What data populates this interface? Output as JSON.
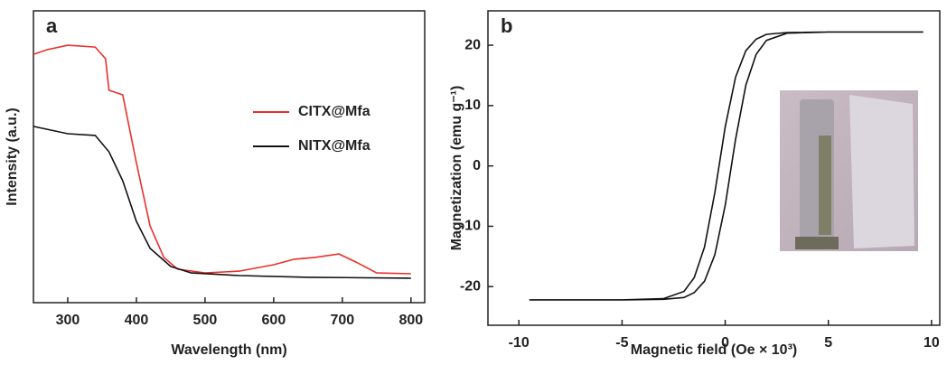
{
  "chart_data": [
    {
      "type": "line",
      "panel_label": "a",
      "x_label": "Wavelength (nm)",
      "y_label": "Intensity (a.u.)",
      "xlim": [
        250,
        820
      ],
      "xticks": [
        300,
        400,
        500,
        600,
        700,
        800
      ],
      "ylim": [
        0,
        100
      ],
      "series": [
        {
          "name": "CITX@Mfa",
          "color": "#e8302a",
          "x": [
            250,
            270,
            300,
            340,
            355,
            360,
            380,
            400,
            420,
            440,
            460,
            500,
            550,
            600,
            630,
            660,
            695,
            720,
            750,
            800
          ],
          "values": [
            85.1,
            86.7,
            88.2,
            87.6,
            83.6,
            72.8,
            71.2,
            48,
            26.3,
            15.5,
            11.5,
            10.2,
            10.8,
            13,
            14.9,
            15.5,
            16.7,
            13.9,
            10.2,
            9.9
          ]
        },
        {
          "name": "NITX@Mfa",
          "color": "#111111",
          "x": [
            250,
            300,
            340,
            360,
            380,
            400,
            420,
            450,
            480,
            550,
            650,
            800
          ],
          "values": [
            60.4,
            57.9,
            57.3,
            51.7,
            41.8,
            27.9,
            18.6,
            12.4,
            10.2,
            9.3,
            8.7,
            8.4
          ]
        }
      ]
    },
    {
      "type": "line",
      "panel_label": "b",
      "x_label": "Magnetic field (Oe × 10³)",
      "y_label": "Magnetization (emu g⁻¹)",
      "xlim": [
        -11.5,
        10.4
      ],
      "xticks": [
        -10,
        -5,
        0,
        5,
        10
      ],
      "ylim": [
        -26.4,
        25.7
      ],
      "yticks": [
        -20,
        -10,
        0,
        10,
        20
      ],
      "series": [
        {
          "color": "#111111",
          "x": [
            -9.5,
            -5,
            -3,
            -2,
            -1.5,
            -1,
            -0.5,
            0,
            0.5,
            1,
            1.5,
            2,
            3,
            5,
            9.6,
            9.6,
            5,
            3,
            2,
            1.5,
            1,
            0.5,
            0,
            -0.5,
            -1,
            -1.5,
            -2,
            -3,
            -5,
            -9.5
          ],
          "values": [
            -22.2,
            -22.2,
            -22.1,
            -21.8,
            -21,
            -19.1,
            -14.7,
            -6.5,
            4.4,
            13.4,
            18.5,
            20.8,
            22,
            22.2,
            22.2,
            22.2,
            22.2,
            22.1,
            21.8,
            21,
            19.1,
            14.7,
            6.5,
            -4.4,
            -13.4,
            -18.5,
            -20.8,
            -22,
            -22.2,
            -22.2
          ]
        }
      ]
    }
  ]
}
